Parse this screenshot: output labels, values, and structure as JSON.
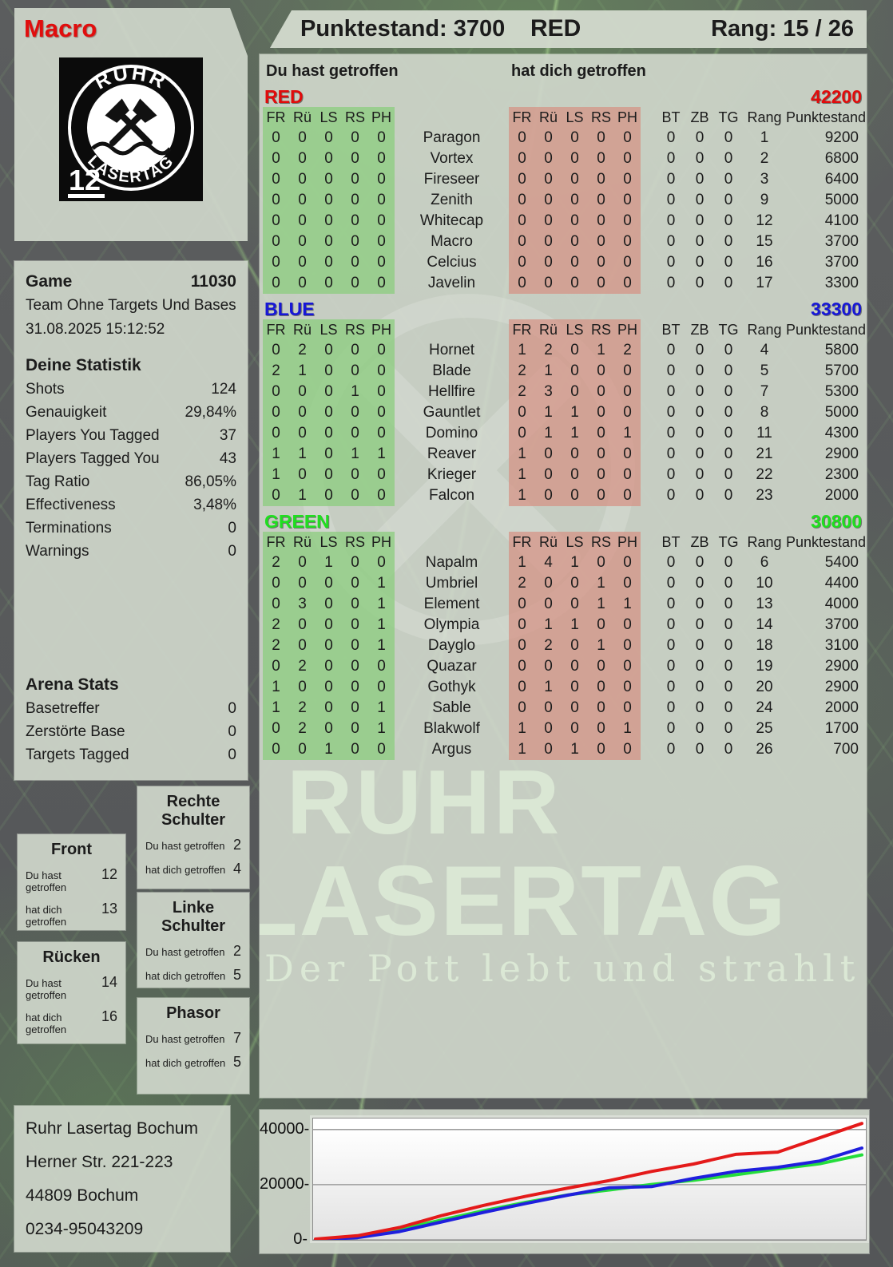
{
  "header": {
    "player_name": "Macro",
    "punktestand": "Punktestand: 3700",
    "team": "RED",
    "rang": "Rang: 15 / 26"
  },
  "logo": {
    "arc_top": "RUHR",
    "arc_bottom": "LASERTAG",
    "badge": "12"
  },
  "game": {
    "label": "Game",
    "number": "11030",
    "mode": "Team Ohne Targets Und Bases",
    "datetime": "31.08.2025 15:12:52"
  },
  "deine_statistik": {
    "title": "Deine Statistik",
    "rows": [
      {
        "label": "Shots",
        "value": "124"
      },
      {
        "label": "Genauigkeit",
        "value": "29,84%"
      },
      {
        "label": "Players You Tagged",
        "value": "37"
      },
      {
        "label": "Players Tagged You",
        "value": "43"
      },
      {
        "label": "Tag Ratio",
        "value": "86,05%"
      },
      {
        "label": "Effectiveness",
        "value": "3,48%"
      },
      {
        "label": "Terminations",
        "value": "0"
      },
      {
        "label": "Warnings",
        "value": "0"
      }
    ]
  },
  "arena_stats": {
    "title": "Arena Stats",
    "rows": [
      {
        "label": "Basetreffer",
        "value": "0"
      },
      {
        "label": "Zerstörte Base",
        "value": "0"
      },
      {
        "label": "Targets Tagged",
        "value": "0"
      }
    ]
  },
  "zone_labels": {
    "du": "Du hast getroffen",
    "dich": "hat dich getroffen"
  },
  "hit_zones": [
    {
      "title": "Front",
      "du": "12",
      "dich": "13"
    },
    {
      "title": "Rücken",
      "du": "14",
      "dich": "16"
    },
    {
      "title": "Rechte Schulter",
      "du": "2",
      "dich": "4"
    },
    {
      "title": "Linke Schulter",
      "du": "2",
      "dich": "5"
    },
    {
      "title": "Phasor",
      "du": "7",
      "dich": "5"
    }
  ],
  "address": {
    "lines": [
      "Ruhr Lasertag Bochum",
      "Herner Str. 221-223",
      "44809 Bochum",
      "0234-95043209"
    ]
  },
  "main": {
    "du_header": "Du hast getroffen",
    "dich_header": "hat dich getroffen",
    "col_headers": [
      "FR",
      "Rü",
      "LS",
      "RS",
      "PH"
    ],
    "col_headers2": [
      "BT",
      "ZB",
      "TG",
      "Rang",
      "Punktestand:"
    ],
    "teams": [
      {
        "name": "RED",
        "color": "#e10b0b",
        "total": "42200",
        "players": [
          {
            "name": "Paragon",
            "du": [
              0,
              0,
              0,
              0,
              0
            ],
            "dich": [
              0,
              0,
              0,
              0,
              0
            ],
            "bt": 0,
            "zb": 0,
            "tg": 0,
            "rang": "1",
            "punkte": "9200"
          },
          {
            "name": "Vortex",
            "du": [
              0,
              0,
              0,
              0,
              0
            ],
            "dich": [
              0,
              0,
              0,
              0,
              0
            ],
            "bt": 0,
            "zb": 0,
            "tg": 0,
            "rang": "2",
            "punkte": "6800"
          },
          {
            "name": "Fireseer",
            "du": [
              0,
              0,
              0,
              0,
              0
            ],
            "dich": [
              0,
              0,
              0,
              0,
              0
            ],
            "bt": 0,
            "zb": 0,
            "tg": 0,
            "rang": "3",
            "punkte": "6400"
          },
          {
            "name": "Zenith",
            "du": [
              0,
              0,
              0,
              0,
              0
            ],
            "dich": [
              0,
              0,
              0,
              0,
              0
            ],
            "bt": 0,
            "zb": 0,
            "tg": 0,
            "rang": "9",
            "punkte": "5000"
          },
          {
            "name": "Whitecap",
            "du": [
              0,
              0,
              0,
              0,
              0
            ],
            "dich": [
              0,
              0,
              0,
              0,
              0
            ],
            "bt": 0,
            "zb": 0,
            "tg": 0,
            "rang": "12",
            "punkte": "4100"
          },
          {
            "name": "Macro",
            "du": [
              0,
              0,
              0,
              0,
              0
            ],
            "dich": [
              0,
              0,
              0,
              0,
              0
            ],
            "bt": 0,
            "zb": 0,
            "tg": 0,
            "rang": "15",
            "punkte": "3700"
          },
          {
            "name": "Celcius",
            "du": [
              0,
              0,
              0,
              0,
              0
            ],
            "dich": [
              0,
              0,
              0,
              0,
              0
            ],
            "bt": 0,
            "zb": 0,
            "tg": 0,
            "rang": "16",
            "punkte": "3700"
          },
          {
            "name": "Javelin",
            "du": [
              0,
              0,
              0,
              0,
              0
            ],
            "dich": [
              0,
              0,
              0,
              0,
              0
            ],
            "bt": 0,
            "zb": 0,
            "tg": 0,
            "rang": "17",
            "punkte": "3300"
          }
        ]
      },
      {
        "name": "BLUE",
        "color": "#1717d6",
        "total": "33300",
        "players": [
          {
            "name": "Hornet",
            "du": [
              0,
              2,
              0,
              0,
              0
            ],
            "dich": [
              1,
              2,
              0,
              1,
              2
            ],
            "bt": 0,
            "zb": 0,
            "tg": 0,
            "rang": "4",
            "punkte": "5800"
          },
          {
            "name": "Blade",
            "du": [
              2,
              1,
              0,
              0,
              0
            ],
            "dich": [
              2,
              1,
              0,
              0,
              0
            ],
            "bt": 0,
            "zb": 0,
            "tg": 0,
            "rang": "5",
            "punkte": "5700"
          },
          {
            "name": "Hellfire",
            "du": [
              0,
              0,
              0,
              1,
              0
            ],
            "dich": [
              2,
              3,
              0,
              0,
              0
            ],
            "bt": 0,
            "zb": 0,
            "tg": 0,
            "rang": "7",
            "punkte": "5300"
          },
          {
            "name": "Gauntlet",
            "du": [
              0,
              0,
              0,
              0,
              0
            ],
            "dich": [
              0,
              1,
              1,
              0,
              0
            ],
            "bt": 0,
            "zb": 0,
            "tg": 0,
            "rang": "8",
            "punkte": "5000"
          },
          {
            "name": "Domino",
            "du": [
              0,
              0,
              0,
              0,
              0
            ],
            "dich": [
              0,
              1,
              1,
              0,
              1
            ],
            "bt": 0,
            "zb": 0,
            "tg": 0,
            "rang": "11",
            "punkte": "4300"
          },
          {
            "name": "Reaver",
            "du": [
              1,
              1,
              0,
              1,
              1
            ],
            "dich": [
              1,
              0,
              0,
              0,
              0
            ],
            "bt": 0,
            "zb": 0,
            "tg": 0,
            "rang": "21",
            "punkte": "2900"
          },
          {
            "name": "Krieger",
            "du": [
              1,
              0,
              0,
              0,
              0
            ],
            "dich": [
              1,
              0,
              0,
              0,
              0
            ],
            "bt": 0,
            "zb": 0,
            "tg": 0,
            "rang": "22",
            "punkte": "2300"
          },
          {
            "name": "Falcon",
            "du": [
              0,
              1,
              0,
              0,
              0
            ],
            "dich": [
              1,
              0,
              0,
              0,
              0
            ],
            "bt": 0,
            "zb": 0,
            "tg": 0,
            "rang": "23",
            "punkte": "2000"
          }
        ]
      },
      {
        "name": "GREEN",
        "color": "#1fdf1f",
        "total": "30800",
        "players": [
          {
            "name": "Napalm",
            "du": [
              2,
              0,
              1,
              0,
              0
            ],
            "dich": [
              1,
              4,
              1,
              0,
              0
            ],
            "bt": 0,
            "zb": 0,
            "tg": 0,
            "rang": "6",
            "punkte": "5400"
          },
          {
            "name": "Umbriel",
            "du": [
              0,
              0,
              0,
              0,
              1
            ],
            "dich": [
              2,
              0,
              0,
              1,
              0
            ],
            "bt": 0,
            "zb": 0,
            "tg": 0,
            "rang": "10",
            "punkte": "4400"
          },
          {
            "name": "Element",
            "du": [
              0,
              3,
              0,
              0,
              1
            ],
            "dich": [
              0,
              0,
              0,
              1,
              1
            ],
            "bt": 0,
            "zb": 0,
            "tg": 0,
            "rang": "13",
            "punkte": "4000"
          },
          {
            "name": "Olympia",
            "du": [
              2,
              0,
              0,
              0,
              1
            ],
            "dich": [
              0,
              1,
              1,
              0,
              0
            ],
            "bt": 0,
            "zb": 0,
            "tg": 0,
            "rang": "14",
            "punkte": "3700"
          },
          {
            "name": "Dayglo",
            "du": [
              2,
              0,
              0,
              0,
              1
            ],
            "dich": [
              0,
              2,
              0,
              1,
              0
            ],
            "bt": 0,
            "zb": 0,
            "tg": 0,
            "rang": "18",
            "punkte": "3100"
          },
          {
            "name": "Quazar",
            "du": [
              0,
              2,
              0,
              0,
              0
            ],
            "dich": [
              0,
              0,
              0,
              0,
              0
            ],
            "bt": 0,
            "zb": 0,
            "tg": 0,
            "rang": "19",
            "punkte": "2900"
          },
          {
            "name": "Gothyk",
            "du": [
              1,
              0,
              0,
              0,
              0
            ],
            "dich": [
              0,
              1,
              0,
              0,
              0
            ],
            "bt": 0,
            "zb": 0,
            "tg": 0,
            "rang": "20",
            "punkte": "2900"
          },
          {
            "name": "Sable",
            "du": [
              1,
              2,
              0,
              0,
              1
            ],
            "dich": [
              0,
              0,
              0,
              0,
              0
            ],
            "bt": 0,
            "zb": 0,
            "tg": 0,
            "rang": "24",
            "punkte": "2000"
          },
          {
            "name": "Blakwolf",
            "du": [
              0,
              2,
              0,
              0,
              1
            ],
            "dich": [
              1,
              0,
              0,
              0,
              1
            ],
            "bt": 0,
            "zb": 0,
            "tg": 0,
            "rang": "25",
            "punkte": "1700"
          },
          {
            "name": "Argus",
            "du": [
              0,
              0,
              1,
              0,
              0
            ],
            "dich": [
              1,
              0,
              1,
              0,
              0
            ],
            "bt": 0,
            "zb": 0,
            "tg": 0,
            "rang": "26",
            "punkte": "700"
          }
        ]
      }
    ]
  },
  "watermark": {
    "line1": "RUHR",
    "line2": "LASERTAG",
    "slogan": "Der Pott lebt und strahlt"
  },
  "chart_data": {
    "type": "line",
    "title": "",
    "xlabel": "",
    "ylabel": "",
    "grid": true,
    "legend": false,
    "x_percent": [
      0,
      7.7,
      15.4,
      23.1,
      30.8,
      38.5,
      46.2,
      53.8,
      61.5,
      69.2,
      76.9,
      84.6,
      92.3,
      100
    ],
    "series": [
      {
        "name": "RED",
        "color": "#e41a1a",
        "values": [
          300,
          1500,
          4500,
          8800,
          12500,
          15800,
          18800,
          21500,
          24800,
          27500,
          31000,
          31800,
          37000,
          42200
        ]
      },
      {
        "name": "BLUE",
        "color": "#1f1fdd",
        "values": [
          0,
          800,
          3000,
          6500,
          10000,
          13200,
          16200,
          18900,
          19300,
          22300,
          24800,
          26300,
          28600,
          33300
        ]
      },
      {
        "name": "GREEN",
        "color": "#24dd3c",
        "values": [
          100,
          1200,
          3800,
          7200,
          10600,
          13600,
          16300,
          18100,
          20100,
          21600,
          23600,
          25700,
          27600,
          30800
        ]
      }
    ],
    "yticks": [
      0,
      20000,
      40000
    ],
    "ylim": [
      0,
      44000
    ]
  }
}
